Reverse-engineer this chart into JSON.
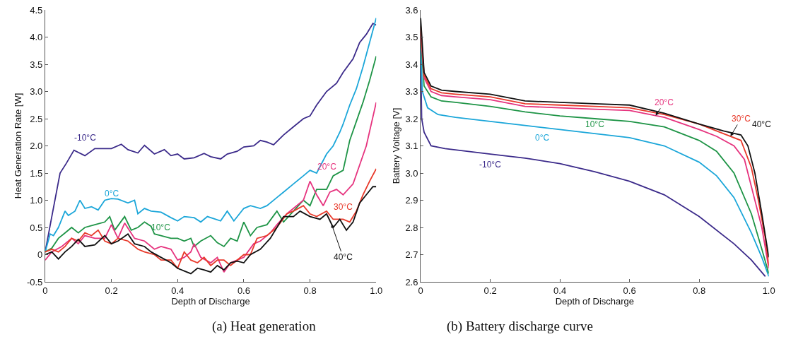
{
  "chart_data": [
    {
      "type": "line",
      "title": "(a) Heat generation",
      "xlabel": "Depth of Discharge",
      "ylabel": "Heat Generation Rate [W]",
      "xlim": [
        0,
        1
      ],
      "ylim": [
        -0.5,
        4.5
      ],
      "xticks": [
        0,
        0.2,
        0.4,
        0.6,
        0.8,
        {
          "value": 1,
          "label": "1.0"
        }
      ],
      "yticks": [
        -0.5,
        0,
        0.5,
        {
          "value": 1,
          "label": "1.0"
        },
        1.5,
        {
          "value": 2,
          "label": "2.0"
        },
        2.5,
        {
          "value": 3,
          "label": "3.0"
        },
        3.5,
        {
          "value": 4,
          "label": "4.0"
        },
        4.5
      ],
      "grid": false,
      "legend": false,
      "marker": "none",
      "line_style": "solid",
      "series": [
        {
          "name": "-10°C",
          "color": "#3b2a8a",
          "x": [
            0,
            0.02,
            0.045,
            0.064,
            0.087,
            0.1,
            0.12,
            0.15,
            0.2,
            0.23,
            0.25,
            0.28,
            0.3,
            0.33,
            0.36,
            0.38,
            0.4,
            0.42,
            0.45,
            0.48,
            0.5,
            0.53,
            0.55,
            0.58,
            0.6,
            0.63,
            0.65,
            0.67,
            0.69,
            0.72,
            0.75,
            0.78,
            0.8,
            0.82,
            0.85,
            0.88,
            0.9,
            0.93,
            0.95,
            0.97,
            0.99,
            1.0
          ],
          "values": [
            0.05,
            0.7,
            1.5,
            1.68,
            1.92,
            1.88,
            1.82,
            1.95,
            1.95,
            2.03,
            1.93,
            1.87,
            2.01,
            1.85,
            1.93,
            1.82,
            1.85,
            1.76,
            1.78,
            1.86,
            1.8,
            1.76,
            1.85,
            1.9,
            1.98,
            2.0,
            2.1,
            2.07,
            2.02,
            2.2,
            2.35,
            2.5,
            2.55,
            2.75,
            3.0,
            3.15,
            3.35,
            3.6,
            3.9,
            4.05,
            4.25,
            4.22
          ]
        },
        {
          "name": "0°C",
          "color": "#1ba6d9",
          "x": [
            0,
            0.015,
            0.025,
            0.04,
            0.06,
            0.07,
            0.09,
            0.105,
            0.12,
            0.14,
            0.16,
            0.18,
            0.2,
            0.22,
            0.25,
            0.27,
            0.28,
            0.3,
            0.32,
            0.35,
            0.38,
            0.4,
            0.42,
            0.45,
            0.47,
            0.49,
            0.51,
            0.53,
            0.55,
            0.57,
            0.6,
            0.62,
            0.65,
            0.67,
            0.7,
            0.72,
            0.75,
            0.78,
            0.8,
            0.82,
            0.85,
            0.87,
            0.89,
            0.9,
            0.92,
            0.94,
            0.96,
            0.98,
            1.0
          ],
          "values": [
            0.05,
            0.38,
            0.35,
            0.5,
            0.8,
            0.72,
            0.8,
            1.0,
            0.85,
            0.88,
            0.82,
            1.0,
            1.03,
            1.02,
            0.95,
            1.0,
            0.75,
            0.85,
            0.8,
            0.78,
            0.68,
            0.62,
            0.7,
            0.68,
            0.6,
            0.7,
            0.66,
            0.62,
            0.8,
            0.62,
            0.85,
            0.9,
            0.85,
            0.9,
            1.05,
            1.15,
            1.3,
            1.45,
            1.55,
            1.5,
            1.85,
            2.0,
            2.25,
            2.4,
            2.75,
            3.05,
            3.45,
            3.9,
            4.35
          ]
        },
        {
          "name": "10°C",
          "color": "#1e9446",
          "x": [
            0,
            0.02,
            0.04,
            0.06,
            0.08,
            0.1,
            0.12,
            0.15,
            0.18,
            0.195,
            0.21,
            0.24,
            0.26,
            0.28,
            0.3,
            0.32,
            0.33,
            0.35,
            0.38,
            0.4,
            0.42,
            0.44,
            0.45,
            0.47,
            0.5,
            0.52,
            0.54,
            0.56,
            0.58,
            0.6,
            0.62,
            0.64,
            0.67,
            0.7,
            0.72,
            0.75,
            0.78,
            0.8,
            0.82,
            0.85,
            0.87,
            0.9,
            0.92,
            0.94,
            0.96,
            0.98,
            1.0
          ],
          "values": [
            0.05,
            0.12,
            0.3,
            0.4,
            0.5,
            0.4,
            0.5,
            0.55,
            0.6,
            0.7,
            0.45,
            0.7,
            0.45,
            0.5,
            0.6,
            0.52,
            0.38,
            0.35,
            0.3,
            0.3,
            0.25,
            0.3,
            0.15,
            0.25,
            0.35,
            0.22,
            0.15,
            0.3,
            0.25,
            0.6,
            0.35,
            0.5,
            0.55,
            0.8,
            0.6,
            0.8,
            1.0,
            0.9,
            1.2,
            1.2,
            1.45,
            1.55,
            2.1,
            2.45,
            2.8,
            3.2,
            3.65
          ]
        },
        {
          "name": "20°C",
          "color": "#e6337e",
          "x": [
            0,
            0.02,
            0.05,
            0.08,
            0.1,
            0.12,
            0.15,
            0.18,
            0.2,
            0.22,
            0.24,
            0.27,
            0.3,
            0.33,
            0.35,
            0.38,
            0.4,
            0.42,
            0.44,
            0.45,
            0.47,
            0.5,
            0.52,
            0.54,
            0.56,
            0.6,
            0.63,
            0.65,
            0.68,
            0.7,
            0.73,
            0.75,
            0.78,
            0.8,
            0.82,
            0.84,
            0.86,
            0.88,
            0.9,
            0.93,
            0.95,
            0.97,
            1.0
          ],
          "values": [
            -0.1,
            0.05,
            0.15,
            0.3,
            0.2,
            0.35,
            0.3,
            0.3,
            0.55,
            0.3,
            0.58,
            0.3,
            0.25,
            0.1,
            0.15,
            0.1,
            -0.1,
            -0.05,
            0.05,
            0.2,
            -0.05,
            -0.15,
            -0.05,
            -0.32,
            -0.15,
            -0.05,
            0.2,
            0.25,
            0.4,
            0.55,
            0.75,
            0.85,
            1.0,
            1.35,
            1.1,
            0.9,
            1.15,
            1.2,
            1.1,
            1.3,
            1.65,
            2.0,
            2.8
          ]
        },
        {
          "name": "30°C",
          "color": "#e8392a",
          "x": [
            0,
            0.02,
            0.04,
            0.06,
            0.08,
            0.1,
            0.12,
            0.14,
            0.16,
            0.18,
            0.2,
            0.22,
            0.25,
            0.28,
            0.3,
            0.33,
            0.35,
            0.38,
            0.4,
            0.42,
            0.44,
            0.46,
            0.48,
            0.5,
            0.52,
            0.54,
            0.56,
            0.58,
            0.6,
            0.62,
            0.64,
            0.67,
            0.7,
            0.73,
            0.75,
            0.78,
            0.8,
            0.82,
            0.85,
            0.87,
            0.9,
            0.92,
            0.94,
            0.96,
            0.98,
            1.0
          ],
          "values": [
            0.05,
            0.1,
            0.05,
            0.15,
            0.3,
            0.25,
            0.4,
            0.35,
            0.45,
            0.25,
            0.2,
            0.3,
            0.25,
            0.1,
            0.05,
            0.0,
            -0.1,
            -0.1,
            -0.25,
            0.05,
            -0.1,
            -0.15,
            -0.05,
            -0.2,
            -0.1,
            -0.1,
            -0.2,
            -0.1,
            0.0,
            0.0,
            0.3,
            0.35,
            0.5,
            0.75,
            0.8,
            0.9,
            0.75,
            0.7,
            0.8,
            0.65,
            0.65,
            0.6,
            0.8,
            1.1,
            1.35,
            1.58
          ]
        },
        {
          "name": "40°C",
          "color": "#111111",
          "x": [
            0,
            0.02,
            0.04,
            0.06,
            0.08,
            0.1,
            0.12,
            0.15,
            0.18,
            0.2,
            0.22,
            0.25,
            0.27,
            0.3,
            0.32,
            0.35,
            0.38,
            0.4,
            0.42,
            0.44,
            0.46,
            0.48,
            0.5,
            0.52,
            0.54,
            0.56,
            0.58,
            0.6,
            0.62,
            0.65,
            0.68,
            0.7,
            0.72,
            0.75,
            0.77,
            0.8,
            0.83,
            0.85,
            0.87,
            0.89,
            0.91,
            0.93,
            0.95,
            0.97,
            0.99,
            1.0
          ],
          "values": [
            0.0,
            0.05,
            -0.08,
            0.05,
            0.15,
            0.28,
            0.15,
            0.18,
            0.35,
            0.2,
            0.25,
            0.38,
            0.2,
            0.15,
            0.05,
            -0.05,
            -0.15,
            -0.25,
            -0.3,
            -0.35,
            -0.25,
            -0.28,
            -0.32,
            -0.2,
            -0.28,
            -0.15,
            -0.12,
            -0.15,
            0.0,
            0.1,
            0.3,
            0.5,
            0.7,
            0.7,
            0.8,
            0.7,
            0.65,
            0.75,
            0.5,
            0.65,
            0.45,
            0.6,
            0.95,
            1.1,
            1.25,
            1.25
          ]
        }
      ]
    },
    {
      "type": "line",
      "title": "(b) Battery discharge curve",
      "xlabel": "Depth of Discharge",
      "ylabel": "Battery Voltage [V]",
      "xlim": [
        0,
        1
      ],
      "ylim": [
        2.6,
        3.6
      ],
      "xticks": [
        0,
        0.2,
        0.4,
        0.6,
        0.8,
        {
          "value": 1,
          "label": "1.0"
        }
      ],
      "yticks": [
        2.6,
        2.7,
        2.8,
        2.9,
        {
          "value": 3,
          "label": "3.0"
        },
        3.1,
        3.2,
        3.3,
        3.4,
        3.5,
        3.6
      ],
      "grid": false,
      "legend": false,
      "marker": "none",
      "line_style": "solid",
      "series": [
        {
          "name": "-10°C",
          "color": "#3b2a8a",
          "x": [
            0,
            0.003,
            0.01,
            0.03,
            0.07,
            0.2,
            0.3,
            0.4,
            0.5,
            0.6,
            0.7,
            0.8,
            0.9,
            0.95,
            0.99
          ],
          "values": [
            3.45,
            3.2,
            3.15,
            3.1,
            3.09,
            3.07,
            3.055,
            3.035,
            3.005,
            2.97,
            2.92,
            2.84,
            2.74,
            2.68,
            2.62
          ]
        },
        {
          "name": "0°C",
          "color": "#1ba6d9",
          "x": [
            0,
            0.005,
            0.02,
            0.05,
            0.1,
            0.2,
            0.3,
            0.4,
            0.5,
            0.6,
            0.7,
            0.8,
            0.85,
            0.9,
            0.95,
            0.98,
            1.0
          ],
          "values": [
            3.47,
            3.3,
            3.24,
            3.215,
            3.205,
            3.19,
            3.175,
            3.16,
            3.145,
            3.13,
            3.1,
            3.04,
            2.99,
            2.91,
            2.78,
            2.69,
            2.62
          ]
        },
        {
          "name": "10°C",
          "color": "#1e9446",
          "x": [
            0,
            0.01,
            0.03,
            0.06,
            0.1,
            0.2,
            0.3,
            0.4,
            0.5,
            0.6,
            0.7,
            0.8,
            0.85,
            0.9,
            0.95,
            0.98,
            1.0
          ],
          "values": [
            3.5,
            3.32,
            3.28,
            3.265,
            3.26,
            3.245,
            3.225,
            3.21,
            3.2,
            3.19,
            3.17,
            3.12,
            3.08,
            3.0,
            2.85,
            2.72,
            2.63
          ]
        },
        {
          "name": "20°C",
          "color": "#e6337e",
          "x": [
            0,
            0.01,
            0.03,
            0.06,
            0.1,
            0.2,
            0.3,
            0.4,
            0.5,
            0.6,
            0.7,
            0.8,
            0.85,
            0.9,
            0.93,
            0.96,
            0.98,
            1.0
          ],
          "values": [
            3.52,
            3.35,
            3.3,
            3.285,
            3.28,
            3.27,
            3.245,
            3.24,
            3.235,
            3.23,
            3.205,
            3.16,
            3.135,
            3.1,
            3.05,
            2.9,
            2.8,
            2.65
          ]
        },
        {
          "name": "30°C",
          "color": "#e8392a",
          "x": [
            0,
            0.01,
            0.03,
            0.06,
            0.1,
            0.2,
            0.3,
            0.4,
            0.5,
            0.6,
            0.7,
            0.8,
            0.88,
            0.92,
            0.95,
            0.97,
            0.99,
            1.0
          ],
          "values": [
            3.54,
            3.36,
            3.31,
            3.295,
            3.29,
            3.28,
            3.255,
            3.25,
            3.245,
            3.24,
            3.215,
            3.18,
            3.14,
            3.12,
            3.02,
            2.9,
            2.76,
            2.66
          ]
        },
        {
          "name": "40°C",
          "color": "#111111",
          "x": [
            0,
            0.01,
            0.03,
            0.06,
            0.1,
            0.2,
            0.3,
            0.4,
            0.5,
            0.6,
            0.7,
            0.8,
            0.87,
            0.92,
            0.94,
            0.96,
            0.98,
            1.0
          ],
          "values": [
            3.57,
            3.37,
            3.32,
            3.305,
            3.3,
            3.29,
            3.265,
            3.26,
            3.255,
            3.25,
            3.22,
            3.18,
            3.155,
            3.14,
            3.1,
            3.0,
            2.85,
            2.69
          ]
        }
      ]
    }
  ]
}
